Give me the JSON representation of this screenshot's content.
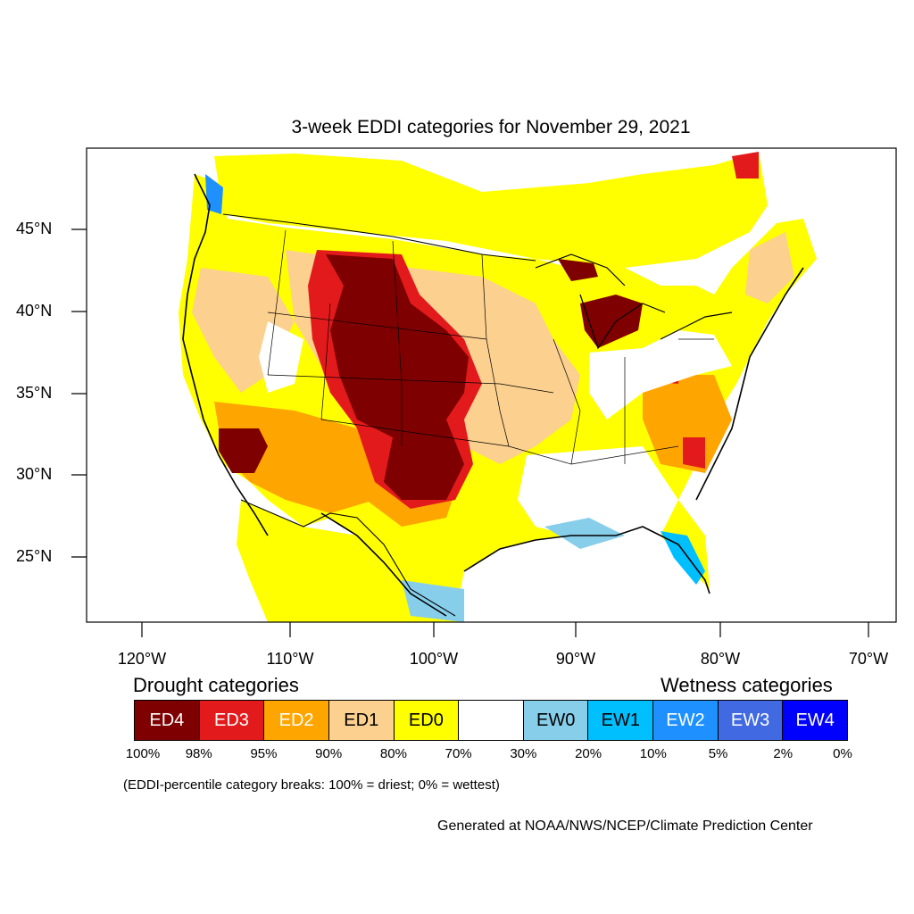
{
  "title": "3-week EDDI categories for November 29, 2021",
  "lat_labels": [
    "45°N",
    "40°N",
    "35°N",
    "30°N",
    "25°N"
  ],
  "lon_labels": [
    "120°W",
    "110°W",
    "100°W",
    "90°W",
    "80°W",
    "70°W"
  ],
  "legend": {
    "drought_heading": "Drought categories",
    "wetness_heading": "Wetness categories",
    "categories": [
      {
        "label": "ED4",
        "color": "#7f0000",
        "text_color": "#ffffff"
      },
      {
        "label": "ED3",
        "color": "#e31a1c",
        "text_color": "#ffffff"
      },
      {
        "label": "ED2",
        "color": "#ffa500",
        "text_color": "#ffffff"
      },
      {
        "label": "ED1",
        "color": "#fcd08e",
        "text_color": "#000000"
      },
      {
        "label": "ED0",
        "color": "#ffff00",
        "text_color": "#000000"
      },
      {
        "label": "",
        "color": "#ffffff",
        "text_color": "#000000"
      },
      {
        "label": "EW0",
        "color": "#87ceeb",
        "text_color": "#000000"
      },
      {
        "label": "EW1",
        "color": "#00bfff",
        "text_color": "#000000"
      },
      {
        "label": "EW2",
        "color": "#1e90ff",
        "text_color": "#ffffff"
      },
      {
        "label": "EW3",
        "color": "#4169e1",
        "text_color": "#ffffff"
      },
      {
        "label": "EW4",
        "color": "#0000ff",
        "text_color": "#ffffff"
      }
    ],
    "breaks": [
      "100%",
      "98%",
      "95%",
      "90%",
      "80%",
      "70%",
      "30%",
      "20%",
      "10%",
      "5%",
      "2%",
      "0%"
    ]
  },
  "footnote": "(EDDI-percentile category breaks: 100% = driest; 0% = wettest)",
  "credit": "Generated at NOAA/NWS/NCEP/Climate Prediction Center"
}
